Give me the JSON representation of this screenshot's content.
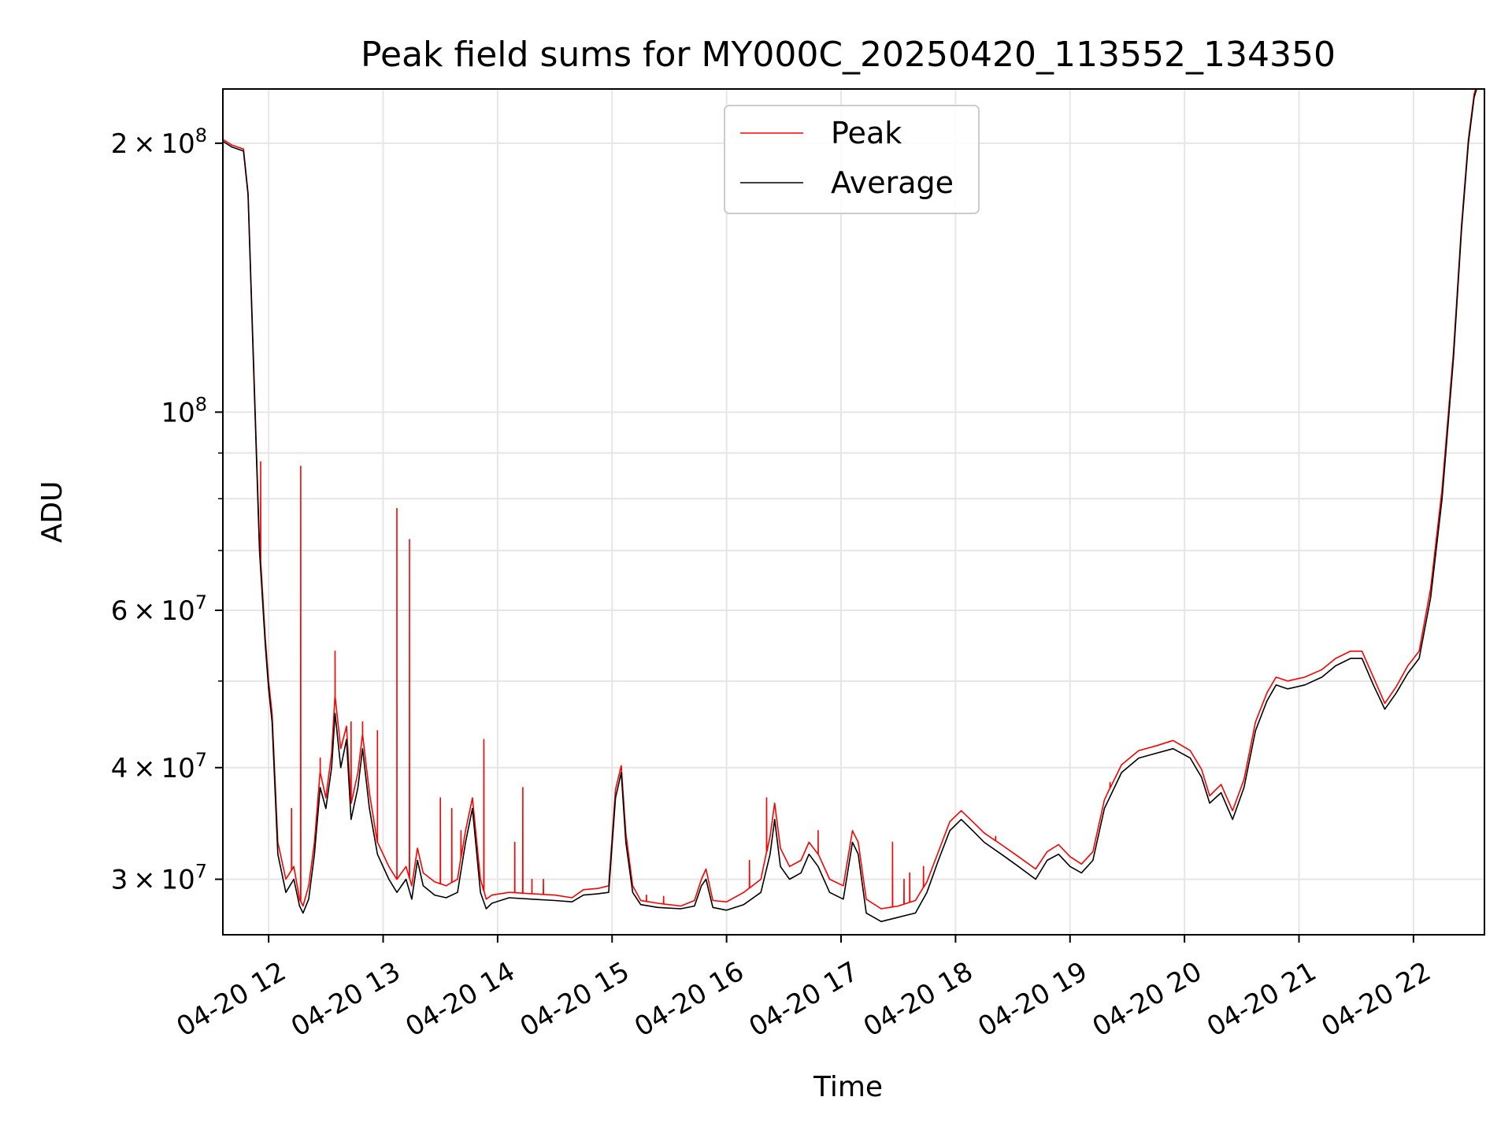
{
  "chart_data": {
    "type": "line",
    "title": "Peak field sums for MY000C_20250420_113552_134350",
    "xlabel": "Time",
    "ylabel": "ADU",
    "x_date": "2025-04-20",
    "x_unit": "hour of day",
    "xlim": [
      11.6,
      22.62
    ],
    "ylim": [
      26000000,
      230000000
    ],
    "yscale": "log",
    "grid": true,
    "legend_position": "top-center",
    "x_ticks": [
      {
        "value": 12,
        "label": "04-20 12"
      },
      {
        "value": 13,
        "label": "04-20 13"
      },
      {
        "value": 14,
        "label": "04-20 14"
      },
      {
        "value": 15,
        "label": "04-20 15"
      },
      {
        "value": 16,
        "label": "04-20 16"
      },
      {
        "value": 17,
        "label": "04-20 17"
      },
      {
        "value": 18,
        "label": "04-20 18"
      },
      {
        "value": 19,
        "label": "04-20 19"
      },
      {
        "value": 20,
        "label": "04-20 20"
      },
      {
        "value": 21,
        "label": "04-20 21"
      },
      {
        "value": 22,
        "label": "04-20 22"
      }
    ],
    "y_ticks": [
      {
        "value": 30000000,
        "mant": "3",
        "exp": "7"
      },
      {
        "value": 40000000,
        "mant": "4",
        "exp": "7"
      },
      {
        "value": 60000000,
        "mant": "6",
        "exp": "7"
      },
      {
        "value": 100000000,
        "mant": "",
        "exp": "8"
      },
      {
        "value": 200000000,
        "mant": "2",
        "exp": "8"
      }
    ],
    "y_minor_ticks": [
      50000000,
      70000000,
      80000000,
      90000000
    ],
    "series": [
      {
        "name": "Average",
        "color": "#000000",
        "points": [
          [
            11.6,
            201000000
          ],
          [
            11.68,
            198000000
          ],
          [
            11.73,
            197000000
          ],
          [
            11.78,
            196000000
          ],
          [
            11.82,
            175000000
          ],
          [
            11.87,
            110000000
          ],
          [
            11.92,
            70000000
          ],
          [
            11.97,
            55000000
          ],
          [
            12.0,
            49000000
          ],
          [
            12.03,
            45000000
          ],
          [
            12.08,
            32000000
          ],
          [
            12.15,
            29000000
          ],
          [
            12.22,
            30000000
          ],
          [
            12.27,
            28000000
          ],
          [
            12.3,
            27500000
          ],
          [
            12.35,
            28500000
          ],
          [
            12.4,
            32000000
          ],
          [
            12.45,
            38000000
          ],
          [
            12.5,
            36000000
          ],
          [
            12.55,
            40000000
          ],
          [
            12.58,
            46000000
          ],
          [
            12.63,
            40000000
          ],
          [
            12.68,
            43000000
          ],
          [
            12.72,
            35000000
          ],
          [
            12.78,
            38000000
          ],
          [
            12.82,
            42000000
          ],
          [
            12.88,
            36000000
          ],
          [
            12.95,
            32000000
          ],
          [
            13.05,
            30000000
          ],
          [
            13.12,
            29000000
          ],
          [
            13.2,
            30000000
          ],
          [
            13.25,
            28500000
          ],
          [
            13.3,
            31500000
          ],
          [
            13.35,
            29500000
          ],
          [
            13.45,
            28800000
          ],
          [
            13.55,
            28600000
          ],
          [
            13.65,
            29000000
          ],
          [
            13.72,
            33000000
          ],
          [
            13.78,
            36000000
          ],
          [
            13.85,
            29000000
          ],
          [
            13.9,
            27800000
          ],
          [
            13.95,
            28200000
          ],
          [
            14.1,
            28600000
          ],
          [
            14.3,
            28500000
          ],
          [
            14.5,
            28400000
          ],
          [
            14.65,
            28300000
          ],
          [
            14.75,
            28800000
          ],
          [
            14.88,
            28900000
          ],
          [
            14.97,
            29000000
          ],
          [
            15.03,
            37000000
          ],
          [
            15.08,
            39500000
          ],
          [
            15.12,
            33000000
          ],
          [
            15.18,
            29000000
          ],
          [
            15.25,
            28100000
          ],
          [
            15.4,
            27900000
          ],
          [
            15.6,
            27800000
          ],
          [
            15.72,
            28000000
          ],
          [
            15.78,
            29500000
          ],
          [
            15.82,
            30000000
          ],
          [
            15.88,
            27900000
          ],
          [
            16.0,
            27700000
          ],
          [
            16.15,
            28100000
          ],
          [
            16.3,
            29000000
          ],
          [
            16.38,
            32000000
          ],
          [
            16.42,
            35000000
          ],
          [
            16.47,
            31000000
          ],
          [
            16.55,
            30000000
          ],
          [
            16.65,
            30500000
          ],
          [
            16.72,
            32000000
          ],
          [
            16.8,
            31000000
          ],
          [
            16.9,
            29000000
          ],
          [
            17.02,
            28500000
          ],
          [
            17.1,
            33000000
          ],
          [
            17.15,
            32000000
          ],
          [
            17.22,
            27500000
          ],
          [
            17.35,
            26900000
          ],
          [
            17.5,
            27200000
          ],
          [
            17.65,
            27500000
          ],
          [
            17.75,
            29000000
          ],
          [
            17.85,
            31500000
          ],
          [
            17.95,
            34000000
          ],
          [
            18.05,
            35000000
          ],
          [
            18.15,
            34000000
          ],
          [
            18.25,
            33000000
          ],
          [
            18.4,
            32000000
          ],
          [
            18.55,
            31000000
          ],
          [
            18.7,
            30000000
          ],
          [
            18.8,
            31500000
          ],
          [
            18.9,
            32000000
          ],
          [
            19.0,
            31000000
          ],
          [
            19.1,
            30500000
          ],
          [
            19.2,
            31500000
          ],
          [
            19.3,
            36000000
          ],
          [
            19.45,
            39500000
          ],
          [
            19.6,
            41000000
          ],
          [
            19.75,
            41500000
          ],
          [
            19.9,
            42000000
          ],
          [
            20.05,
            41000000
          ],
          [
            20.15,
            39000000
          ],
          [
            20.22,
            36500000
          ],
          [
            20.32,
            37500000
          ],
          [
            20.42,
            35000000
          ],
          [
            20.52,
            38000000
          ],
          [
            20.62,
            44000000
          ],
          [
            20.72,
            47500000
          ],
          [
            20.8,
            49500000
          ],
          [
            20.9,
            49000000
          ],
          [
            21.05,
            49500000
          ],
          [
            21.2,
            50500000
          ],
          [
            21.32,
            52000000
          ],
          [
            21.45,
            53000000
          ],
          [
            21.55,
            53000000
          ],
          [
            21.65,
            49500000
          ],
          [
            21.75,
            46500000
          ],
          [
            21.85,
            48500000
          ],
          [
            21.95,
            51000000
          ],
          [
            22.05,
            53000000
          ],
          [
            22.15,
            62000000
          ],
          [
            22.25,
            80000000
          ],
          [
            22.35,
            115000000
          ],
          [
            22.42,
            160000000
          ],
          [
            22.48,
            200000000
          ],
          [
            22.53,
            225000000
          ],
          [
            22.56,
            232000000
          ]
        ]
      },
      {
        "name": "Peak",
        "color": "#ff0000",
        "points": [
          [
            11.6,
            202000000
          ],
          [
            11.68,
            199000000
          ],
          [
            11.73,
            198000000
          ],
          [
            11.78,
            197000000
          ],
          [
            11.82,
            176000000
          ],
          [
            11.87,
            112000000
          ],
          [
            11.92,
            71000000
          ],
          [
            11.97,
            56000000
          ],
          [
            12.0,
            50000000
          ],
          [
            12.03,
            46000000
          ],
          [
            12.08,
            33000000
          ],
          [
            12.15,
            30000000
          ],
          [
            12.22,
            31000000
          ],
          [
            12.27,
            28500000
          ],
          [
            12.3,
            28000000
          ],
          [
            12.35,
            29500000
          ],
          [
            12.4,
            33000000
          ],
          [
            12.45,
            39500000
          ],
          [
            12.5,
            37000000
          ],
          [
            12.55,
            41500000
          ],
          [
            12.58,
            48000000
          ],
          [
            12.63,
            42000000
          ],
          [
            12.68,
            44500000
          ],
          [
            12.72,
            36500000
          ],
          [
            12.78,
            39500000
          ],
          [
            12.82,
            43500000
          ],
          [
            12.88,
            37500000
          ],
          [
            12.95,
            33000000
          ],
          [
            13.05,
            31000000
          ],
          [
            13.12,
            30000000
          ],
          [
            13.2,
            31000000
          ],
          [
            13.25,
            29500000
          ],
          [
            13.3,
            32500000
          ],
          [
            13.35,
            30500000
          ],
          [
            13.45,
            29800000
          ],
          [
            13.55,
            29500000
          ],
          [
            13.65,
            30000000
          ],
          [
            13.72,
            34000000
          ],
          [
            13.78,
            37000000
          ],
          [
            13.85,
            30000000
          ],
          [
            13.9,
            28500000
          ],
          [
            13.95,
            28800000
          ],
          [
            14.1,
            29000000
          ],
          [
            14.3,
            28900000
          ],
          [
            14.5,
            28800000
          ],
          [
            14.65,
            28600000
          ],
          [
            14.75,
            29200000
          ],
          [
            14.88,
            29300000
          ],
          [
            14.97,
            29500000
          ],
          [
            15.03,
            37800000
          ],
          [
            15.08,
            40200000
          ],
          [
            15.12,
            33800000
          ],
          [
            15.18,
            29500000
          ],
          [
            15.25,
            28400000
          ],
          [
            15.4,
            28200000
          ],
          [
            15.6,
            28000000
          ],
          [
            15.72,
            28400000
          ],
          [
            15.78,
            30000000
          ],
          [
            15.82,
            30800000
          ],
          [
            15.88,
            28400000
          ],
          [
            16.0,
            28300000
          ],
          [
            16.15,
            29000000
          ],
          [
            16.3,
            30000000
          ],
          [
            16.38,
            33500000
          ],
          [
            16.42,
            36500000
          ],
          [
            16.47,
            32500000
          ],
          [
            16.55,
            31000000
          ],
          [
            16.65,
            31500000
          ],
          [
            16.72,
            33000000
          ],
          [
            16.8,
            32000000
          ],
          [
            16.9,
            30000000
          ],
          [
            17.02,
            29500000
          ],
          [
            17.1,
            34000000
          ],
          [
            17.15,
            33000000
          ],
          [
            17.22,
            28500000
          ],
          [
            17.35,
            27800000
          ],
          [
            17.5,
            28000000
          ],
          [
            17.65,
            28400000
          ],
          [
            17.75,
            29800000
          ],
          [
            17.85,
            32200000
          ],
          [
            17.95,
            34800000
          ],
          [
            18.05,
            35800000
          ],
          [
            18.15,
            34800000
          ],
          [
            18.25,
            33800000
          ],
          [
            18.4,
            32800000
          ],
          [
            18.55,
            31800000
          ],
          [
            18.7,
            30800000
          ],
          [
            18.8,
            32200000
          ],
          [
            18.9,
            32800000
          ],
          [
            19.0,
            31800000
          ],
          [
            19.1,
            31200000
          ],
          [
            19.2,
            32200000
          ],
          [
            19.3,
            36800000
          ],
          [
            19.45,
            40300000
          ],
          [
            19.6,
            41800000
          ],
          [
            19.75,
            42300000
          ],
          [
            19.9,
            42900000
          ],
          [
            20.05,
            41800000
          ],
          [
            20.15,
            39800000
          ],
          [
            20.22,
            37200000
          ],
          [
            20.32,
            38300000
          ],
          [
            20.42,
            35800000
          ],
          [
            20.52,
            38800000
          ],
          [
            20.62,
            45000000
          ],
          [
            20.72,
            48500000
          ],
          [
            20.8,
            50500000
          ],
          [
            20.9,
            50000000
          ],
          [
            21.05,
            50500000
          ],
          [
            21.2,
            51500000
          ],
          [
            21.32,
            53000000
          ],
          [
            21.45,
            54000000
          ],
          [
            21.55,
            54000000
          ],
          [
            21.65,
            50500000
          ],
          [
            21.75,
            47200000
          ],
          [
            21.85,
            49300000
          ],
          [
            21.95,
            52000000
          ],
          [
            22.05,
            54000000
          ],
          [
            22.15,
            63500000
          ],
          [
            22.25,
            82000000
          ],
          [
            22.35,
            117000000
          ],
          [
            22.42,
            162000000
          ],
          [
            22.48,
            202000000
          ],
          [
            22.53,
            227000000
          ],
          [
            22.56,
            234000000
          ]
        ],
        "spikes": [
          [
            11.93,
            88000000
          ],
          [
            12.28,
            87000000
          ],
          [
            12.2,
            36000000
          ],
          [
            12.45,
            41000000
          ],
          [
            12.58,
            54000000
          ],
          [
            12.72,
            45000000
          ],
          [
            12.82,
            45000000
          ],
          [
            12.95,
            44000000
          ],
          [
            13.12,
            78000000
          ],
          [
            13.23,
            72000000
          ],
          [
            13.5,
            37000000
          ],
          [
            13.6,
            36000000
          ],
          [
            13.68,
            34000000
          ],
          [
            13.88,
            43000000
          ],
          [
            14.15,
            33000000
          ],
          [
            14.22,
            38000000
          ],
          [
            14.3,
            30000000
          ],
          [
            14.4,
            30000000
          ],
          [
            15.3,
            28800000
          ],
          [
            15.45,
            28700000
          ],
          [
            16.2,
            31500000
          ],
          [
            16.35,
            37000000
          ],
          [
            16.8,
            34000000
          ],
          [
            17.45,
            33000000
          ],
          [
            17.55,
            30000000
          ],
          [
            17.6,
            30500000
          ],
          [
            17.72,
            31000000
          ],
          [
            18.35,
            33500000
          ],
          [
            19.35,
            38500000
          ]
        ]
      }
    ]
  }
}
